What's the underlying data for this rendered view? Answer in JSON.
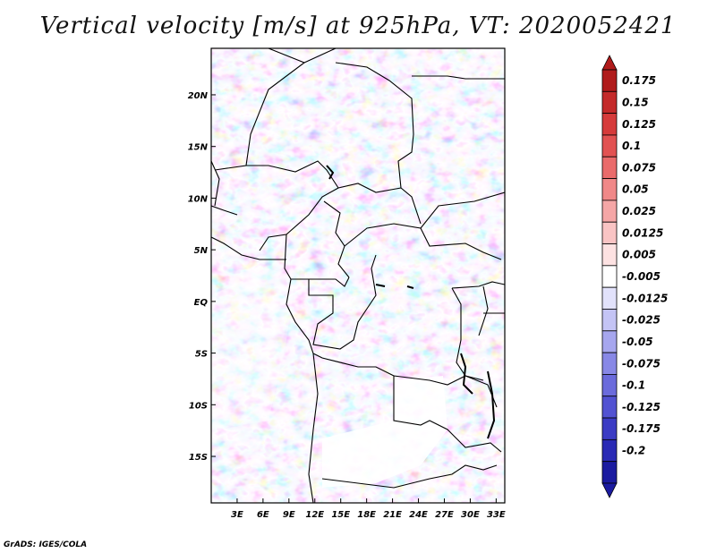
{
  "title": "Vertical velocity [m/s] at 925hPa, VT: 2020052421",
  "footer": "GrADS: IGES/COLA",
  "map": {
    "variable": "Vertical velocity",
    "units": "m/s",
    "level": "925hPa",
    "valid_time": "2020052421",
    "lon_range": [
      0,
      34
    ],
    "lat_range": [
      -19.5,
      24.5
    ],
    "lon_ticks": [
      "3E",
      "6E",
      "9E",
      "12E",
      "15E",
      "18E",
      "21E",
      "24E",
      "27E",
      "30E",
      "33E"
    ],
    "lat_ticks": [
      "20N",
      "15N",
      "10N",
      "5N",
      "EQ",
      "5S",
      "10S",
      "15S"
    ]
  },
  "colorbar": {
    "labels": [
      "0.175",
      "0.15",
      "0.125",
      "0.1",
      "0.075",
      "0.05",
      "0.025",
      "0.0125",
      "0.005",
      "-0.005",
      "-0.0125",
      "-0.025",
      "-0.05",
      "-0.075",
      "-0.1",
      "-0.125",
      "-0.175",
      "-0.2"
    ],
    "colors": [
      "#b01b1b",
      "#c42a2a",
      "#d63b3b",
      "#e25252",
      "#ea6b6b",
      "#f08888",
      "#f5a6a6",
      "#f9c4c4",
      "#fde2e2",
      "#ffffff",
      "#e2e2fb",
      "#c4c4f5",
      "#a6a6ee",
      "#8888e6",
      "#6b6bdc",
      "#5252d2",
      "#3b3bc4",
      "#2a2ab5",
      "#1b1ba0"
    ]
  }
}
